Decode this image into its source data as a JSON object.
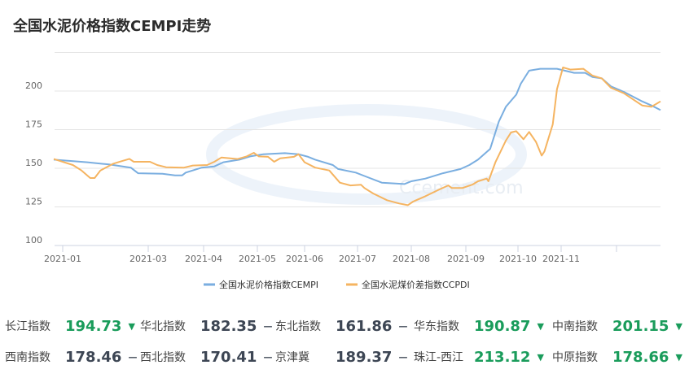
{
  "title": "全国水泥价格指数CEMPI走势",
  "chart_data": {
    "type": "line",
    "title": "全国水泥价格指数CEMPI走势",
    "ylim": [
      100,
      225
    ],
    "yticks": [
      100,
      125,
      150,
      175,
      200
    ],
    "xtick_labels": [
      "2021-01",
      "2021-03",
      "2021-04",
      "2021-05",
      "2021-06",
      "2021-07",
      "2021-08",
      "2021-09",
      "2021-10",
      "2021-11"
    ],
    "grid": true,
    "legend": "bottom",
    "series": [
      {
        "name": "全国水泥价格指数CEMPI",
        "color": "#7aaee0",
        "points": [
          [
            "2020-12-26",
            155.6
          ],
          [
            "2021-01-18",
            153.9
          ],
          [
            "2021-02-02",
            152.5
          ],
          [
            "2021-02-17",
            150.4
          ],
          [
            "2021-02-22",
            146.8
          ],
          [
            "2021-03-09",
            146.5
          ],
          [
            "2021-03-16",
            145.4
          ],
          [
            "2021-03-20",
            145.4
          ],
          [
            "2021-03-22",
            147.2
          ],
          [
            "2021-03-31",
            150.4
          ],
          [
            "2021-04-07",
            151.2
          ],
          [
            "2021-04-12",
            153.9
          ],
          [
            "2021-04-21",
            155.6
          ],
          [
            "2021-04-27",
            157.7
          ],
          [
            "2021-05-05",
            159.1
          ],
          [
            "2021-05-19",
            159.8
          ],
          [
            "2021-05-28",
            159.1
          ],
          [
            "2021-06-03",
            157.4
          ],
          [
            "2021-06-07",
            155.6
          ],
          [
            "2021-06-17",
            152.1
          ],
          [
            "2021-06-20",
            149.5
          ],
          [
            "2021-06-30",
            147.2
          ],
          [
            "2021-07-05",
            145.0
          ],
          [
            "2021-07-15",
            140.7
          ],
          [
            "2021-07-28",
            139.8
          ],
          [
            "2021-08-01",
            141.6
          ],
          [
            "2021-08-09",
            143.3
          ],
          [
            "2021-08-19",
            146.8
          ],
          [
            "2021-08-29",
            149.5
          ],
          [
            "2021-09-03",
            152.1
          ],
          [
            "2021-09-08",
            155.6
          ],
          [
            "2021-09-15",
            162.6
          ],
          [
            "2021-09-20",
            180.2
          ],
          [
            "2021-09-24",
            189.8
          ],
          [
            "2021-09-30",
            197.7
          ],
          [
            "2021-10-03",
            204.7
          ],
          [
            "2021-10-09",
            213.2
          ],
          [
            "2021-10-17",
            214.4
          ],
          [
            "2021-10-29",
            214.4
          ],
          [
            "2021-11-08",
            211.8
          ],
          [
            "2021-11-14",
            211.8
          ],
          [
            "2021-11-18",
            209.1
          ],
          [
            "2021-11-23",
            208.2
          ],
          [
            "2021-11-28",
            203.0
          ],
          [
            "2021-12-05",
            199.5
          ],
          [
            "2021-12-15",
            193.3
          ],
          [
            "2021-12-20",
            190.7
          ],
          [
            "2021-12-25",
            187.7
          ]
        ]
      },
      {
        "name": "全国水泥煤价差指数CCPDI",
        "color": "#f5b461",
        "points": [
          [
            "2020-12-26",
            156.0
          ],
          [
            "2021-01-08",
            152.1
          ],
          [
            "2021-01-14",
            148.6
          ],
          [
            "2021-01-20",
            143.7
          ],
          [
            "2021-01-23",
            143.7
          ],
          [
            "2021-01-27",
            148.6
          ],
          [
            "2021-02-05",
            153.0
          ],
          [
            "2021-02-11",
            154.7
          ],
          [
            "2021-02-16",
            156.1
          ],
          [
            "2021-02-19",
            154.2
          ],
          [
            "2021-03-02",
            154.2
          ],
          [
            "2021-03-06",
            152.1
          ],
          [
            "2021-03-11",
            150.7
          ],
          [
            "2021-03-21",
            150.4
          ],
          [
            "2021-03-26",
            151.8
          ],
          [
            "2021-04-03",
            152.1
          ],
          [
            "2021-04-07",
            154.2
          ],
          [
            "2021-04-11",
            157.0
          ],
          [
            "2021-04-20",
            156.0
          ],
          [
            "2021-04-25",
            157.7
          ],
          [
            "2021-04-29",
            160.0
          ],
          [
            "2021-05-02",
            157.7
          ],
          [
            "2021-05-08",
            157.4
          ],
          [
            "2021-05-12",
            154.2
          ],
          [
            "2021-05-16",
            156.5
          ],
          [
            "2021-05-25",
            157.4
          ],
          [
            "2021-05-28",
            159.1
          ],
          [
            "2021-06-01",
            153.9
          ],
          [
            "2021-06-07",
            150.4
          ],
          [
            "2021-06-15",
            148.6
          ],
          [
            "2021-06-21",
            140.7
          ],
          [
            "2021-06-27",
            138.9
          ],
          [
            "2021-07-03",
            139.3
          ],
          [
            "2021-07-05",
            137.2
          ],
          [
            "2021-07-10",
            133.7
          ],
          [
            "2021-07-18",
            129.3
          ],
          [
            "2021-07-25",
            127.2
          ],
          [
            "2021-07-30",
            126.1
          ],
          [
            "2021-08-02",
            128.4
          ],
          [
            "2021-08-09",
            131.9
          ],
          [
            "2021-08-17",
            136.3
          ],
          [
            "2021-08-22",
            138.9
          ],
          [
            "2021-08-24",
            137.2
          ],
          [
            "2021-08-30",
            137.2
          ],
          [
            "2021-09-05",
            139.5
          ],
          [
            "2021-09-08",
            141.6
          ],
          [
            "2021-09-13",
            143.3
          ],
          [
            "2021-09-14",
            141.6
          ],
          [
            "2021-09-18",
            153.9
          ],
          [
            "2021-09-24",
            167.9
          ],
          [
            "2021-09-27",
            173.2
          ],
          [
            "2021-09-30",
            174.0
          ],
          [
            "2021-10-05",
            168.8
          ],
          [
            "2021-10-09",
            173.5
          ],
          [
            "2021-10-14",
            167.0
          ],
          [
            "2021-10-18",
            158.2
          ],
          [
            "2021-10-20",
            160.9
          ],
          [
            "2021-10-26",
            178.4
          ],
          [
            "2021-10-29",
            201.2
          ],
          [
            "2021-11-02",
            215.3
          ],
          [
            "2021-11-06",
            213.9
          ],
          [
            "2021-11-13",
            214.4
          ],
          [
            "2021-11-18",
            210.0
          ],
          [
            "2021-11-23",
            208.2
          ],
          [
            "2021-11-28",
            202.1
          ],
          [
            "2021-12-05",
            198.6
          ],
          [
            "2021-12-15",
            190.7
          ],
          [
            "2021-12-20",
            189.8
          ],
          [
            "2021-12-25",
            193.3
          ]
        ]
      }
    ]
  },
  "stats": [
    [
      {
        "label": "长江指数",
        "value": "194.73",
        "trend": "up"
      },
      {
        "label": "华北指数",
        "value": "182.35",
        "trend": "flat"
      },
      {
        "label": "东北指数",
        "value": "161.86",
        "trend": "flat"
      },
      {
        "label": "华东指数",
        "value": "190.87",
        "trend": "up"
      },
      {
        "label": "中南指数",
        "value": "201.15",
        "trend": "up"
      }
    ],
    [
      {
        "label": "西南指数",
        "value": "178.46",
        "trend": "flat"
      },
      {
        "label": "西北指数",
        "value": "170.41",
        "trend": "flat"
      },
      {
        "label": "京津冀",
        "value": "189.37",
        "trend": "flat"
      },
      {
        "label": "珠江-西江",
        "value": "213.12",
        "trend": "up"
      },
      {
        "label": "中原指数",
        "value": "178.66",
        "trend": "up"
      }
    ]
  ],
  "colors": {
    "up": "#1a9c5b",
    "flat": "#3d4654"
  }
}
